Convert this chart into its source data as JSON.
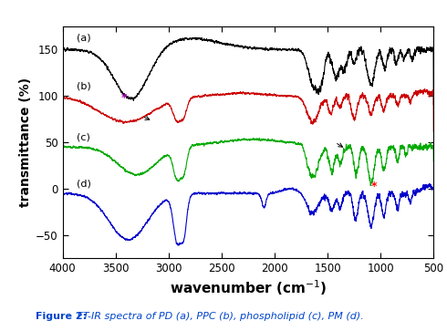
{
  "title_bold": "Figure 2:",
  "title_rest": " FT-IR spectra of PD (a), PPC (b), phospholipid (c), PM (d).",
  "xlabel": "wavenumber (cm$^{-1}$)",
  "ylabel": "transmittance (%)",
  "xlim": [
    4000,
    500
  ],
  "ylim": [
    -75,
    175
  ],
  "yticks": [
    -50,
    0,
    50,
    100,
    150
  ],
  "xticks": [
    4000,
    3500,
    3000,
    2500,
    2000,
    1500,
    1000,
    500
  ],
  "colors": {
    "a": "#000000",
    "b": "#cc0000",
    "c": "#00aa00",
    "d": "#0000cc"
  },
  "background": "#ffffff",
  "outer_background": "#ffffff"
}
